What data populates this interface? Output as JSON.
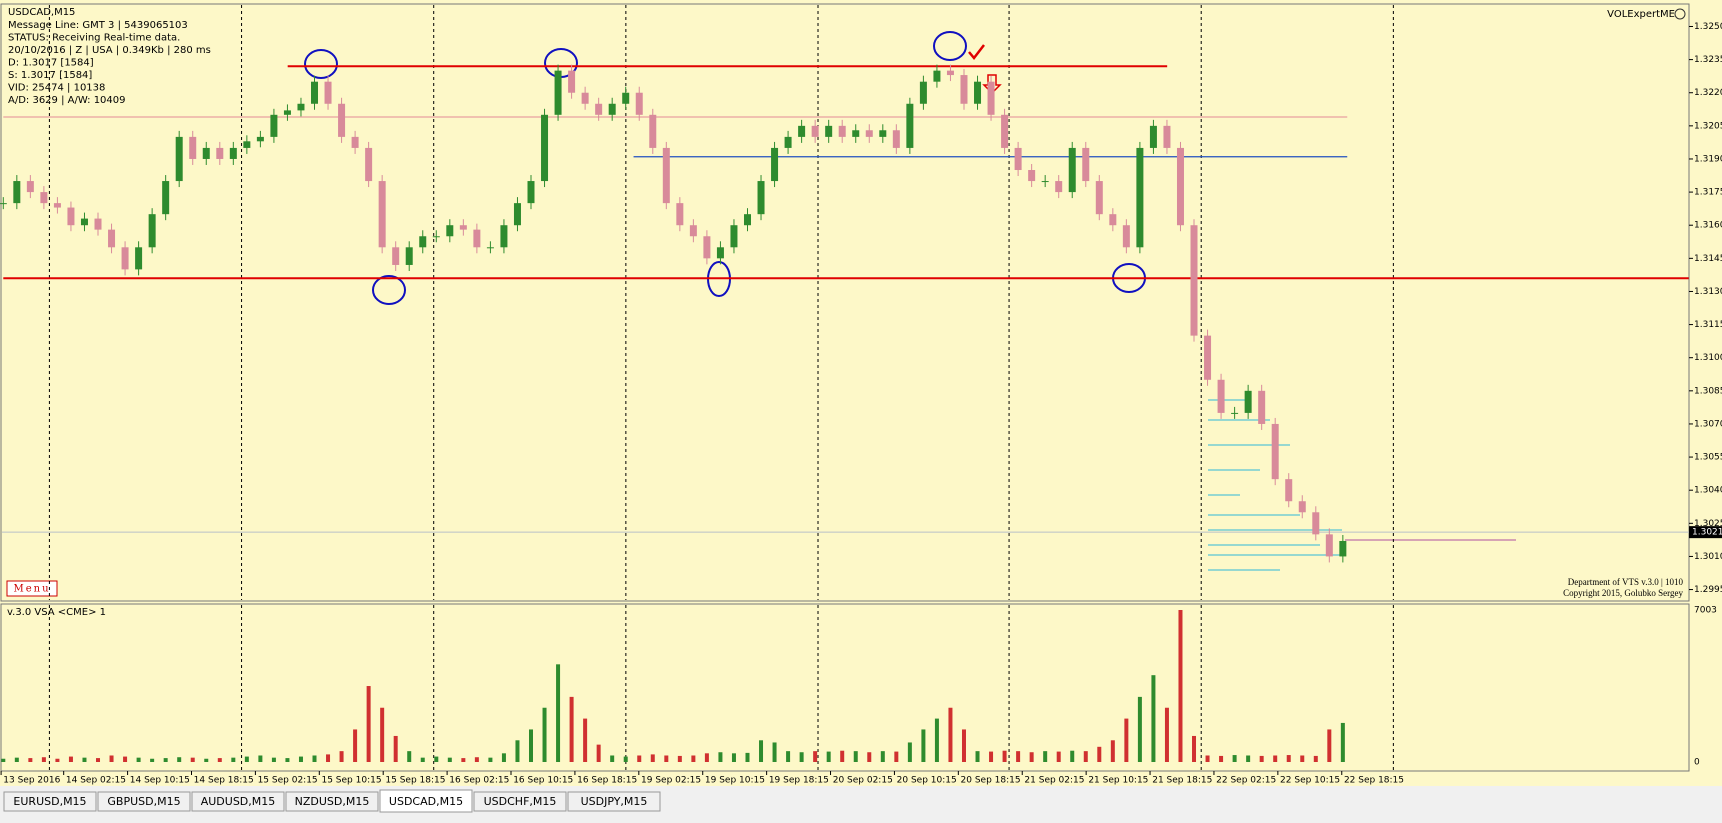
{
  "header": {
    "symbol": "USDCAD,M15",
    "info": [
      "Message Line: GMT 3 | 5439065103",
      "STATUS: Receiving Real-time data.",
      "20/10/2016 | Z | USA | 0.349Kb | 280 ms",
      "D: 1.3017  [1584]",
      "S: 1.3017  [1584]",
      "VID: 25474 | 10138",
      "A/D: 3629 | A/W: 10409"
    ]
  },
  "indicator_name": "VOLExpertME",
  "menu": "Menu",
  "credits": [
    "Department of VTS  v.3.0 | 1010",
    "Copyright 2015, Golubko Sergey"
  ],
  "volume_pane_title": "v.3.0 VSA <CME> 1",
  "price_chart": {
    "type": "candlestick",
    "up_color": "#2e8b2e",
    "down_color": "#d88a9a",
    "closes": [
      1.317,
      1.318,
      1.3175,
      1.317,
      1.3168,
      1.316,
      1.3163,
      1.3158,
      1.315,
      1.314,
      1.315,
      1.3165,
      1.318,
      1.32,
      1.319,
      1.3195,
      1.319,
      1.3195,
      1.3198,
      1.32,
      1.321,
      1.3212,
      1.3215,
      1.3225,
      1.3215,
      1.32,
      1.3195,
      1.318,
      1.315,
      1.3142,
      1.315,
      1.3155,
      1.3155,
      1.316,
      1.3158,
      1.315,
      1.315,
      1.316,
      1.317,
      1.318,
      1.321,
      1.323,
      1.322,
      1.3215,
      1.321,
      1.3215,
      1.322,
      1.321,
      1.3195,
      1.317,
      1.316,
      1.3155,
      1.3145,
      1.315,
      1.316,
      1.3165,
      1.318,
      1.3195,
      1.32,
      1.3205,
      1.32,
      1.3205,
      1.32,
      1.3203,
      1.32,
      1.3203,
      1.3195,
      1.3215,
      1.3225,
      1.323,
      1.3228,
      1.3215,
      1.3225,
      1.321,
      1.3195,
      1.3185,
      1.318,
      1.318,
      1.3175,
      1.3195,
      1.318,
      1.3165,
      1.316,
      1.315,
      1.3195,
      1.3205,
      1.3195,
      1.316,
      1.311,
      1.309,
      1.3075,
      1.3075,
      1.3085,
      1.307,
      1.3045,
      1.3035,
      1.303,
      1.302,
      1.301,
      1.3017
    ],
    "ylim": [
      1.299,
      1.326
    ],
    "yticks": [
      {
        "value": 1.325,
        "label": "1.3250"
      },
      1.3235,
      {
        "value": 1.322,
        "label": "1.3220"
      },
      1.3205,
      {
        "value": 1.319,
        "label": "1.3190"
      },
      1.3175,
      {
        "value": 1.316,
        "label": "1.3160"
      },
      1.3145,
      {
        "value": 1.313,
        "label": "1.3130"
      },
      1.3115,
      {
        "value": 1.31,
        "label": "1.3100"
      },
      1.3085,
      {
        "value": 1.307,
        "label": "1.3070"
      },
      1.3055,
      {
        "value": 1.304,
        "label": "1.3040"
      },
      1.3025,
      {
        "value": 1.301,
        "label": "1.3010"
      },
      1.2995
    ],
    "levels": [
      {
        "value": 1.3232,
        "color": "#e00000"
      },
      {
        "value": 1.3209,
        "color": "#e8a0a0"
      },
      {
        "value": 1.3191,
        "color": "#2050c0"
      },
      {
        "value": 1.3136,
        "color": "#e00000"
      }
    ],
    "bid": 1.3021
  },
  "volume_chart": {
    "type": "bar",
    "values": [
      150,
      200,
      180,
      220,
      150,
      250,
      200,
      180,
      300,
      250,
      200,
      150,
      180,
      220,
      200,
      150,
      180,
      200,
      250,
      300,
      200,
      180,
      250,
      300,
      350,
      500,
      1500,
      3500,
      2500,
      1200,
      500,
      200,
      250,
      200,
      180,
      220,
      200,
      400,
      1000,
      1500,
      2500,
      4500,
      3000,
      2000,
      800,
      300,
      250,
      300,
      350,
      300,
      280,
      300,
      400,
      450,
      400,
      420,
      1000,
      900,
      500,
      450,
      500,
      480,
      520,
      500,
      450,
      500,
      480,
      900,
      1500,
      2000,
      2500,
      1500,
      500,
      480,
      520,
      500,
      450,
      500,
      480,
      520,
      500,
      700,
      1000,
      2000,
      3000,
      4000,
      2500,
      7003,
      1200,
      300,
      280,
      320,
      300,
      280,
      300,
      320,
      300,
      280,
      1500,
      1800
    ],
    "ylim": [
      0,
      7003
    ],
    "yticks": [
      7003,
      0
    ]
  },
  "time_labels": [
    "13 Sep 2016",
    "14 Sep 02:15",
    "14 Sep 10:15",
    "14 Sep 18:15",
    "15 Sep 02:15",
    "15 Sep 10:15",
    "15 Sep 18:15",
    "16 Sep 02:15",
    "16 Sep 10:15",
    "16 Sep 18:15",
    "19 Sep 02:15",
    "19 Sep 10:15",
    "19 Sep 18:15",
    "20 Sep 02:15",
    "20 Sep 10:15",
    "20 Sep 18:15",
    "21 Sep 02:15",
    "21 Sep 10:15",
    "21 Sep 18:15",
    "22 Sep 02:15",
    "22 Sep 10:15",
    "22 Sep 18:15"
  ],
  "tabs": [
    "EURUSD,M15",
    "GBPUSD,M15",
    "AUDUSD,M15",
    "NZDUSD,M15",
    "USDCAD,M15",
    "USDCHF,M15",
    "USDJPY,M15"
  ]
}
